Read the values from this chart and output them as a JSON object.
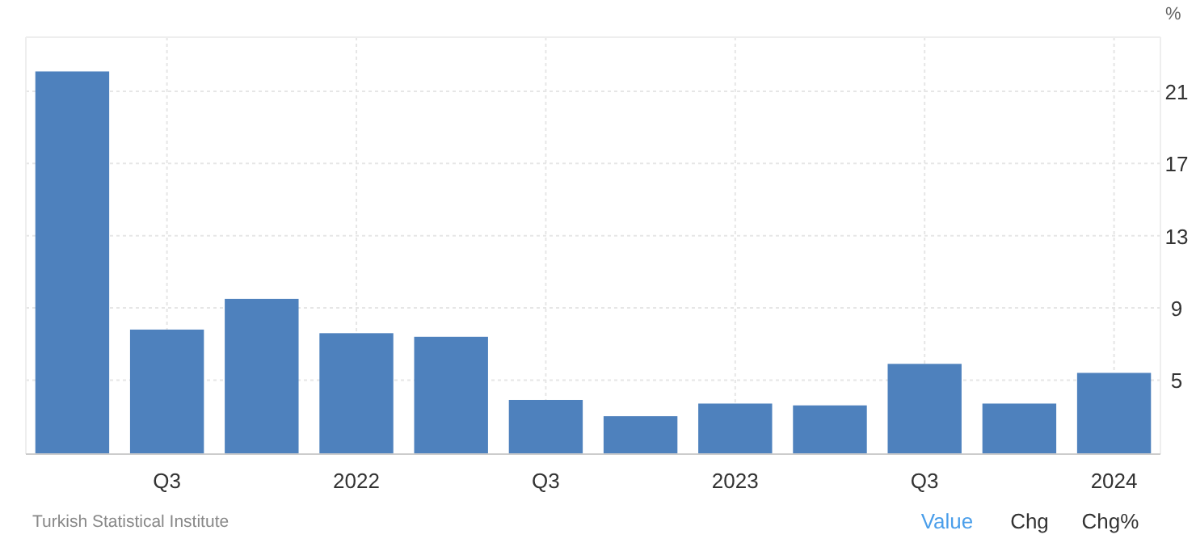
{
  "chart_data": {
    "type": "bar",
    "ylabel": "%",
    "categories": [
      null,
      "Q3",
      null,
      "2022",
      null,
      "Q3",
      null,
      "2023",
      null,
      "Q3",
      null,
      "2024"
    ],
    "values": [
      22.1,
      7.8,
      9.5,
      7.6,
      7.4,
      3.9,
      3.0,
      3.7,
      3.6,
      5.9,
      3.7,
      5.4
    ],
    "color": "#4e81bd",
    "ylim": [
      0.9,
      24
    ],
    "yticks": [
      5,
      9,
      13,
      17,
      21
    ],
    "grid": true,
    "annotations": [
      "Turkish Statistical Institute",
      "Value",
      "Chg",
      "Chg%"
    ]
  }
}
